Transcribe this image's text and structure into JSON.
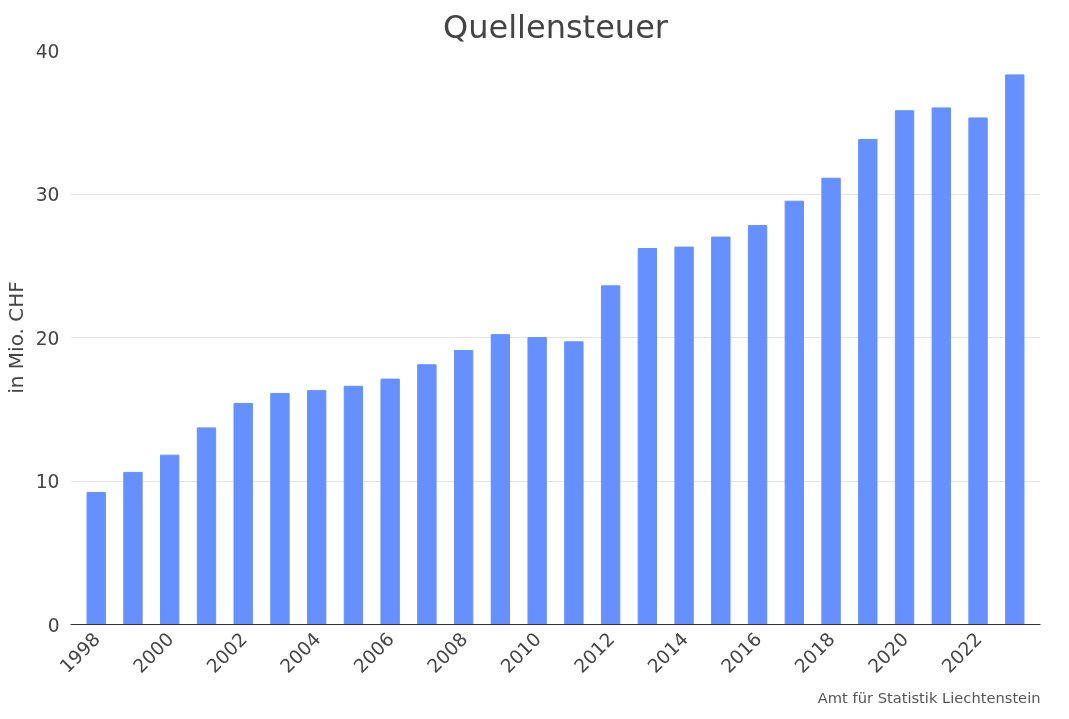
{
  "chart_data": {
    "type": "bar",
    "title": "Quellensteuer",
    "ylabel": "in Mio. CHF",
    "categories": [
      "1998",
      null,
      "2000",
      null,
      "2002",
      null,
      "2004",
      null,
      "2006",
      null,
      "2008",
      null,
      "2010",
      null,
      "2012",
      null,
      "2014",
      null,
      "2016",
      null,
      "2018",
      null,
      "2020",
      null,
      "2022",
      null
    ],
    "values": [
      9.2,
      10.6,
      11.8,
      13.7,
      15.4,
      16.1,
      16.3,
      16.6,
      17.1,
      18.1,
      19.1,
      20.2,
      20.0,
      19.7,
      23.6,
      26.2,
      26.3,
      27.0,
      27.8,
      29.5,
      31.1,
      33.8,
      35.8,
      36.0,
      35.3,
      38.3
    ],
    "color": "#6690ff",
    "ylim": [
      0,
      40
    ],
    "yticks": [
      0,
      10,
      20,
      30,
      40
    ],
    "grid": "y",
    "annotations": [
      "Amt für Statistik Liechtenstein"
    ]
  }
}
